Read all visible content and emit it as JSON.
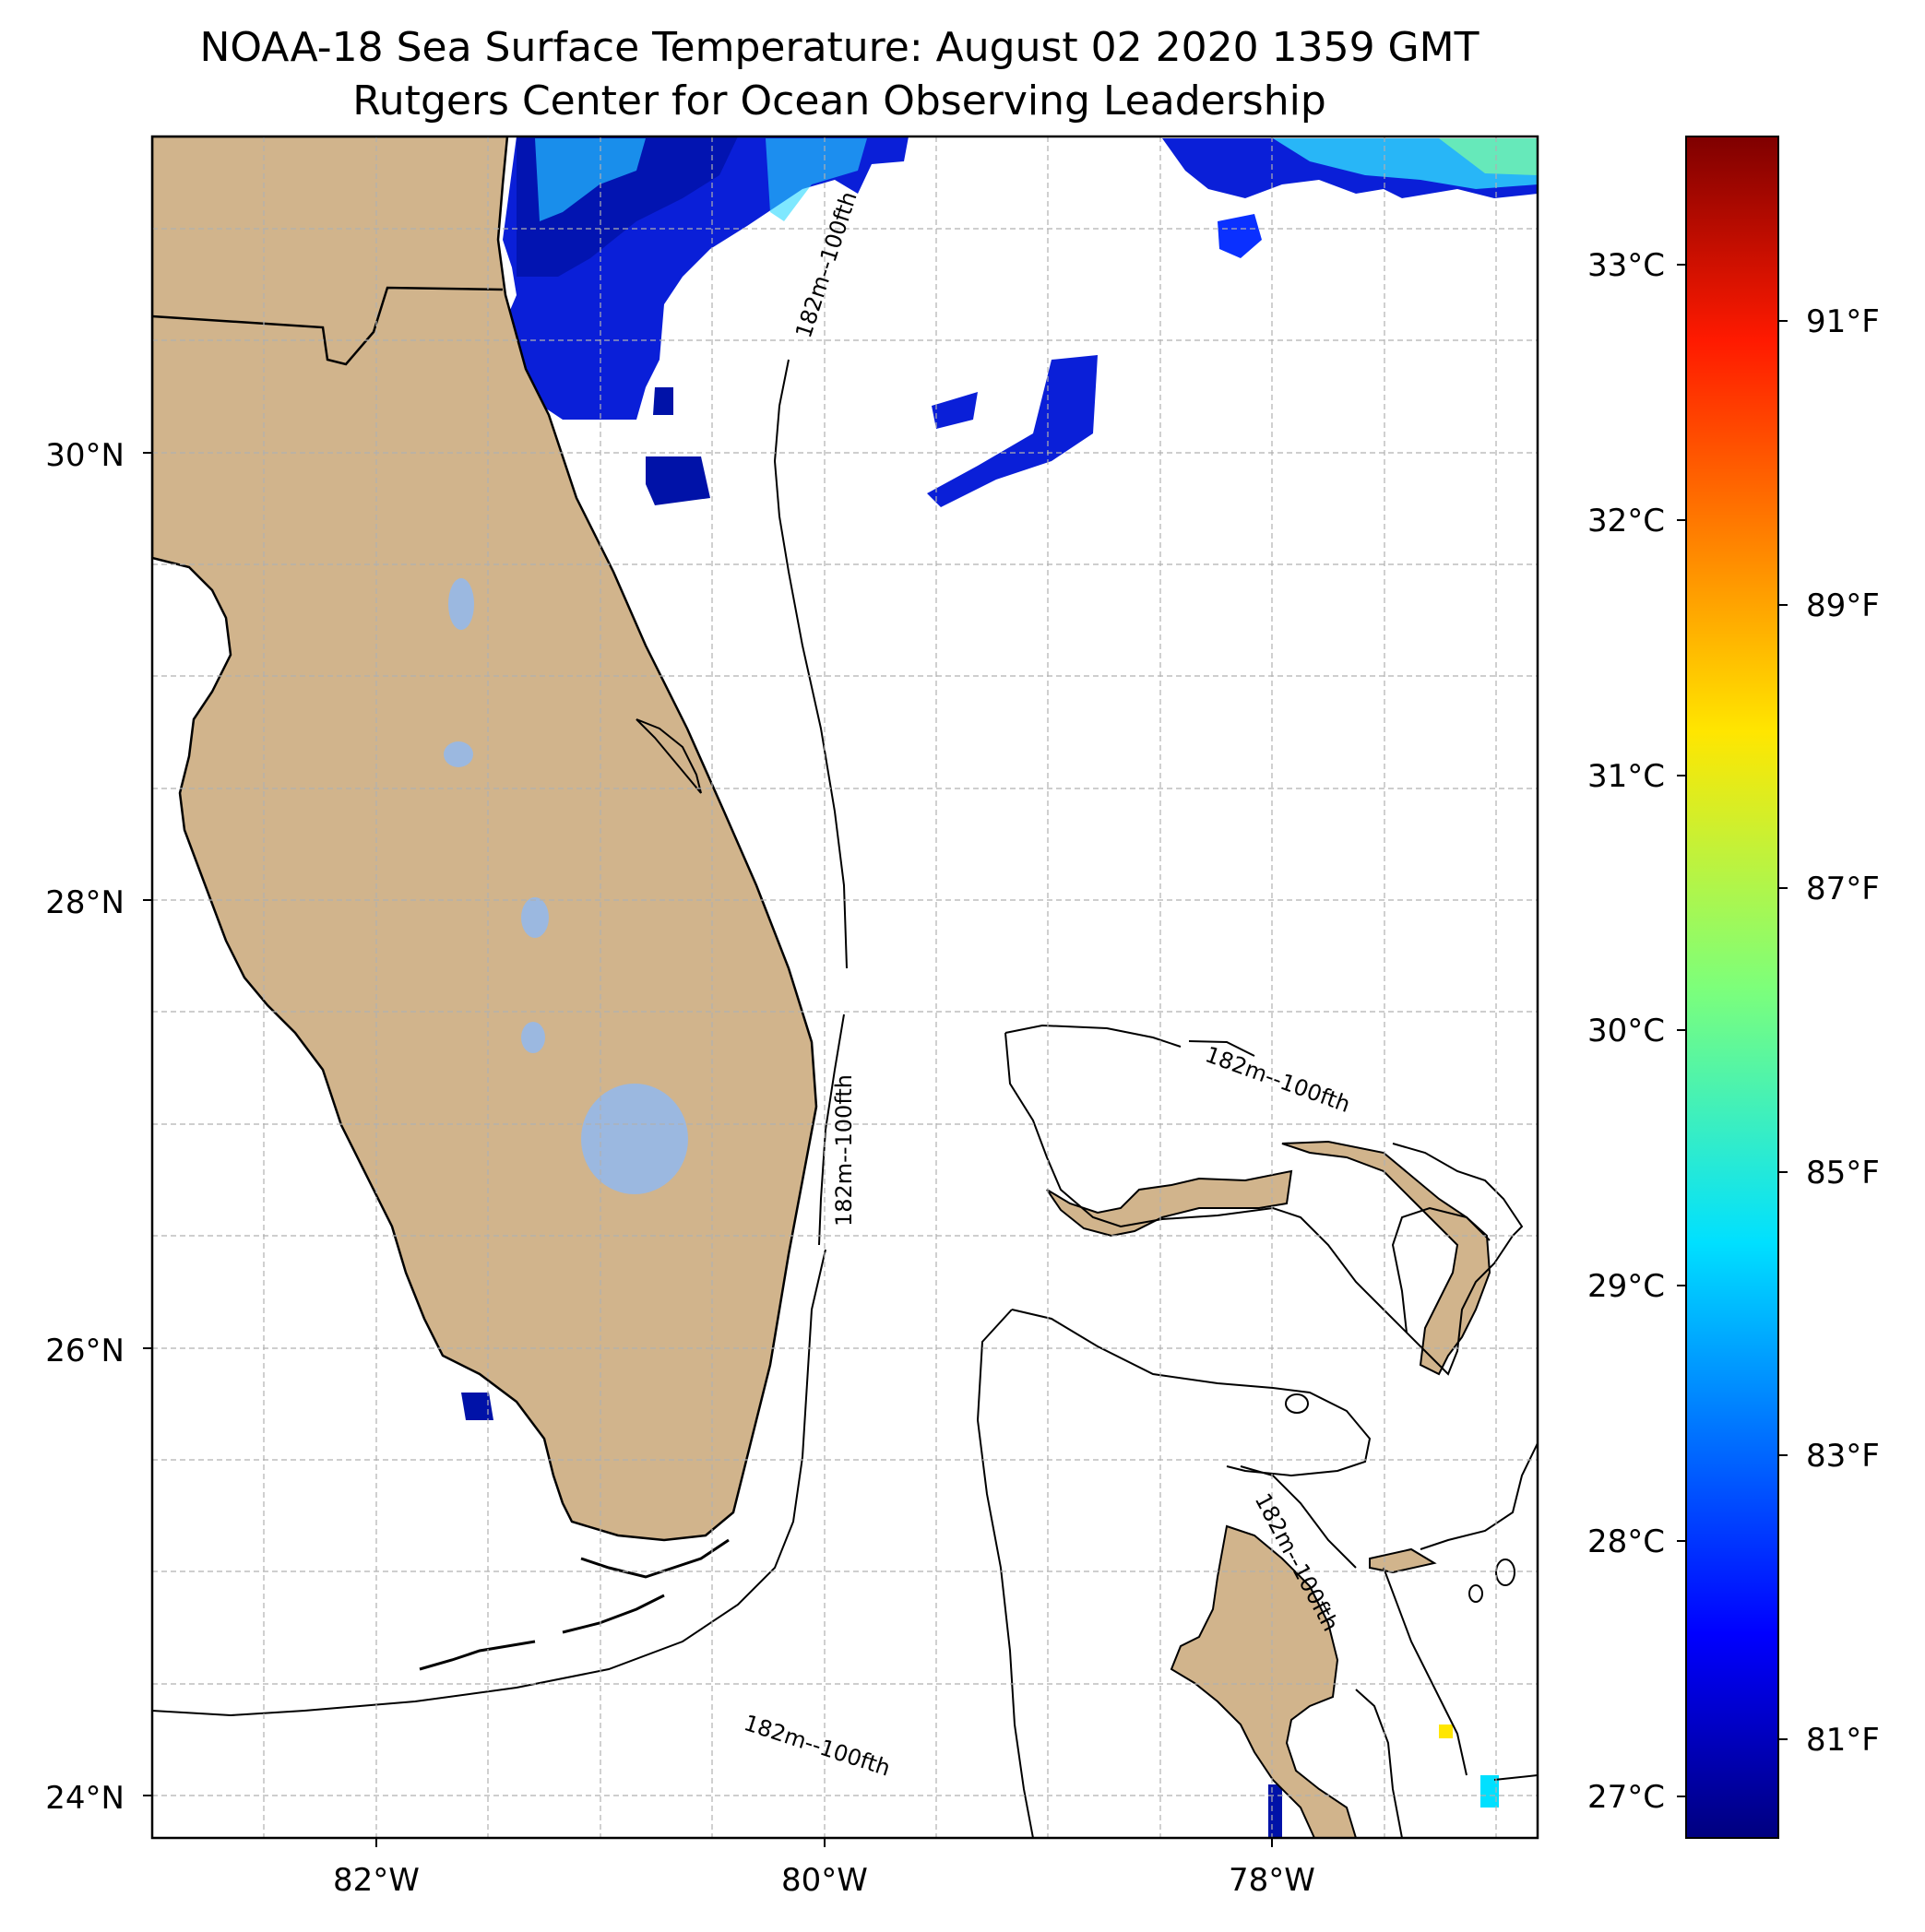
{
  "title": "NOAA-18 Sea Surface Temperature: August 02 2020 1359 GMT",
  "subtitle": "Rutgers Center for Ocean Observing Leadership",
  "lat_ticks": [
    "30°N",
    "28°N",
    "26°N",
    "24°N"
  ],
  "lon_ticks": [
    "82°W",
    "80°W",
    "78°W"
  ],
  "colorbar": {
    "celsius_ticks": [
      "33°C",
      "32°C",
      "31°C",
      "30°C",
      "29°C",
      "28°C",
      "27°C"
    ],
    "fahrenheit_ticks": [
      "91°F",
      "89°F",
      "87°F",
      "85°F",
      "83°F",
      "81°F"
    ],
    "colormap": "jet"
  },
  "contour_labels": [
    "182m--100fth",
    "182m--100fth",
    "182m--100fth",
    "182m--100fth",
    "182m--100fth"
  ],
  "colors": {
    "land": "#d1b48c",
    "lakes": "#9bb8e0",
    "sst_dark": "#00007f",
    "sst_blue": "#0020ff",
    "sst_cyan": "#20e0ff",
    "grid": "#b0b0b0"
  }
}
